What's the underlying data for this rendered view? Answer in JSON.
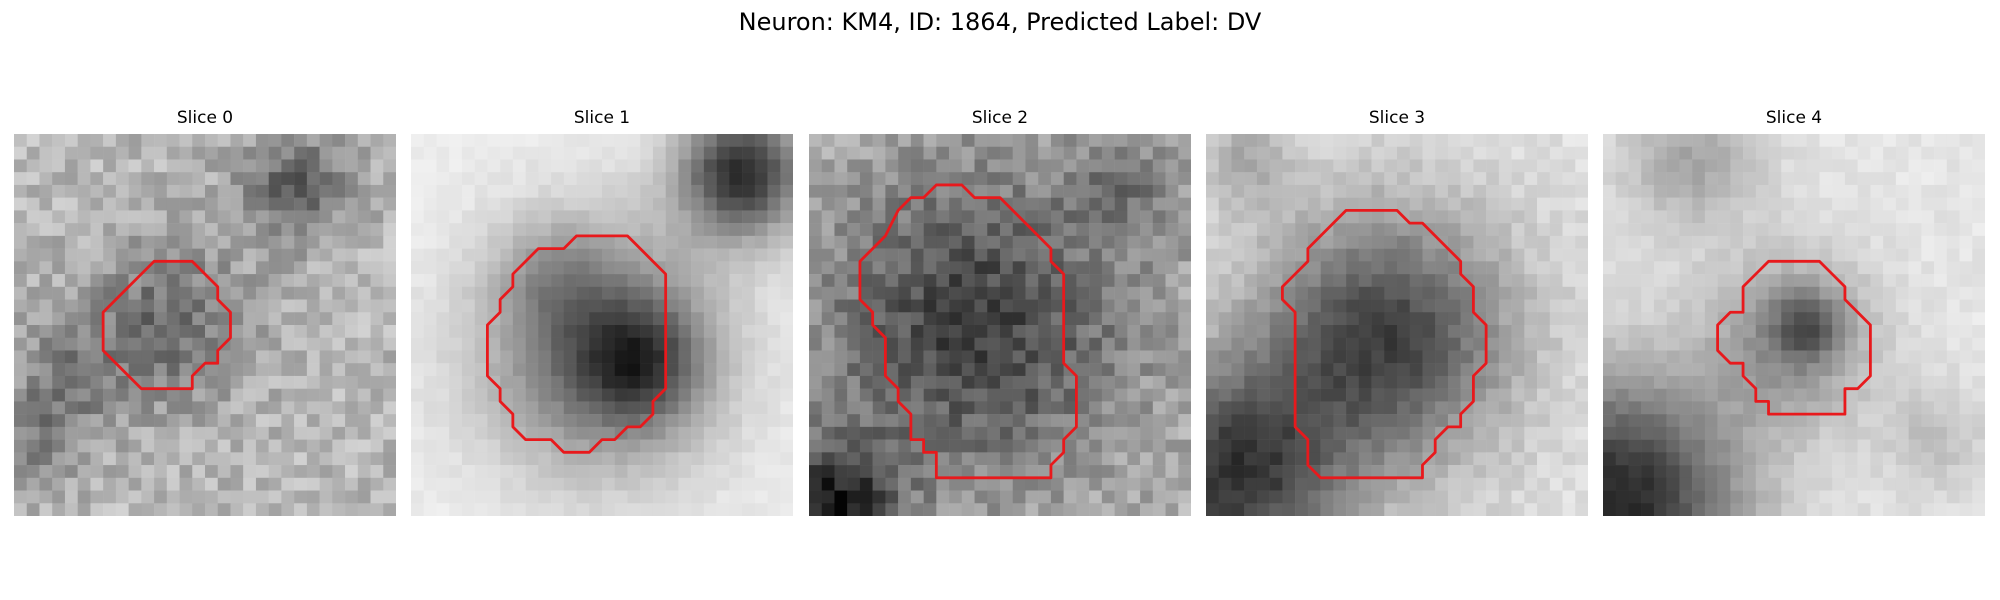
{
  "figure": {
    "suptitle": "Neuron: KM4, ID: 1864, Predicted Label: DV",
    "outline_color": "#e8191c",
    "colormap": "gray"
  },
  "panels": [
    {
      "title": "Slice 0",
      "image_description": "noisy grayscale patch, faint darker blob near center",
      "mask_outline": [
        [
          10,
          11
        ],
        [
          11,
          10
        ],
        [
          14,
          10
        ],
        [
          16,
          12
        ],
        [
          16,
          13
        ],
        [
          17,
          14
        ],
        [
          17,
          16
        ],
        [
          16,
          17
        ],
        [
          16,
          18
        ],
        [
          15,
          18
        ],
        [
          14,
          19
        ],
        [
          14,
          20
        ],
        [
          10,
          20
        ],
        [
          8,
          18
        ],
        [
          7,
          17
        ],
        [
          7,
          14
        ],
        [
          8,
          13
        ],
        [
          9,
          12
        ]
      ]
    },
    {
      "title": "Slice 1",
      "image_description": "bright background with a dark round body lower-right of center",
      "mask_outline": [
        [
          9,
          10
        ],
        [
          10,
          9
        ],
        [
          12,
          9
        ],
        [
          13,
          8
        ],
        [
          17,
          8
        ],
        [
          19,
          10
        ],
        [
          20,
          11
        ],
        [
          20,
          13
        ],
        [
          20,
          20
        ],
        [
          19,
          21
        ],
        [
          19,
          22
        ],
        [
          18,
          23
        ],
        [
          17,
          23
        ],
        [
          16,
          24
        ],
        [
          15,
          24
        ],
        [
          14,
          25
        ],
        [
          12,
          25
        ],
        [
          11,
          24
        ],
        [
          9,
          24
        ],
        [
          8,
          23
        ],
        [
          8,
          22
        ],
        [
          7,
          21
        ],
        [
          7,
          20
        ],
        [
          6,
          19
        ],
        [
          6,
          15
        ],
        [
          7,
          14
        ],
        [
          7,
          13
        ],
        [
          8,
          12
        ],
        [
          8,
          11
        ]
      ]
    },
    {
      "title": "Slice 2",
      "image_description": "speckled dark nucleus filling most of the patch",
      "mask_outline": [
        [
          7,
          6
        ],
        [
          8,
          5
        ],
        [
          9,
          5
        ],
        [
          10,
          4
        ],
        [
          12,
          4
        ],
        [
          13,
          5
        ],
        [
          15,
          5
        ],
        [
          16,
          6
        ],
        [
          17,
          7
        ],
        [
          18,
          8
        ],
        [
          19,
          9
        ],
        [
          19,
          10
        ],
        [
          20,
          11
        ],
        [
          20,
          18
        ],
        [
          21,
          19
        ],
        [
          21,
          23
        ],
        [
          20,
          24
        ],
        [
          20,
          25
        ],
        [
          19,
          26
        ],
        [
          19,
          27
        ],
        [
          10,
          27
        ],
        [
          10,
          25
        ],
        [
          9,
          25
        ],
        [
          9,
          24
        ],
        [
          8,
          24
        ],
        [
          8,
          22
        ],
        [
          7,
          21
        ],
        [
          7,
          20
        ],
        [
          6,
          19
        ],
        [
          6,
          16
        ],
        [
          5,
          15
        ],
        [
          5,
          14
        ],
        [
          4,
          13
        ],
        [
          4,
          10
        ],
        [
          5,
          9
        ],
        [
          6,
          8
        ]
      ]
    },
    {
      "title": "Slice 3",
      "image_description": "dark round nucleus on light background, dark corner lower-left",
      "mask_outline": [
        [
          10,
          7
        ],
        [
          11,
          6
        ],
        [
          15,
          6
        ],
        [
          16,
          7
        ],
        [
          17,
          7
        ],
        [
          18,
          8
        ],
        [
          19,
          9
        ],
        [
          20,
          10
        ],
        [
          20,
          11
        ],
        [
          21,
          12
        ],
        [
          21,
          14
        ],
        [
          22,
          15
        ],
        [
          22,
          18
        ],
        [
          21,
          19
        ],
        [
          21,
          21
        ],
        [
          20,
          22
        ],
        [
          20,
          23
        ],
        [
          19,
          23
        ],
        [
          18,
          24
        ],
        [
          18,
          25
        ],
        [
          17,
          26
        ],
        [
          17,
          27
        ],
        [
          9,
          27
        ],
        [
          8,
          26
        ],
        [
          8,
          24
        ],
        [
          7,
          23
        ],
        [
          7,
          17
        ],
        [
          7,
          14
        ],
        [
          6,
          13
        ],
        [
          6,
          12
        ],
        [
          7,
          11
        ],
        [
          8,
          10
        ],
        [
          8,
          9
        ],
        [
          9,
          8
        ]
      ]
    },
    {
      "title": "Slice 4",
      "image_description": "light patch with small darker blob, dark corner lower-left",
      "mask_outline": [
        [
          12,
          11
        ],
        [
          13,
          10
        ],
        [
          17,
          10
        ],
        [
          18,
          11
        ],
        [
          19,
          12
        ],
        [
          19,
          13
        ],
        [
          20,
          14
        ],
        [
          21,
          15
        ],
        [
          21,
          19
        ],
        [
          20,
          20
        ],
        [
          19,
          20
        ],
        [
          19,
          22
        ],
        [
          13,
          22
        ],
        [
          13,
          21
        ],
        [
          12,
          21
        ],
        [
          12,
          20
        ],
        [
          11,
          19
        ],
        [
          11,
          18
        ],
        [
          10,
          18
        ],
        [
          9,
          17
        ],
        [
          9,
          15
        ],
        [
          10,
          14
        ],
        [
          11,
          14
        ],
        [
          11,
          12
        ]
      ]
    }
  ]
}
